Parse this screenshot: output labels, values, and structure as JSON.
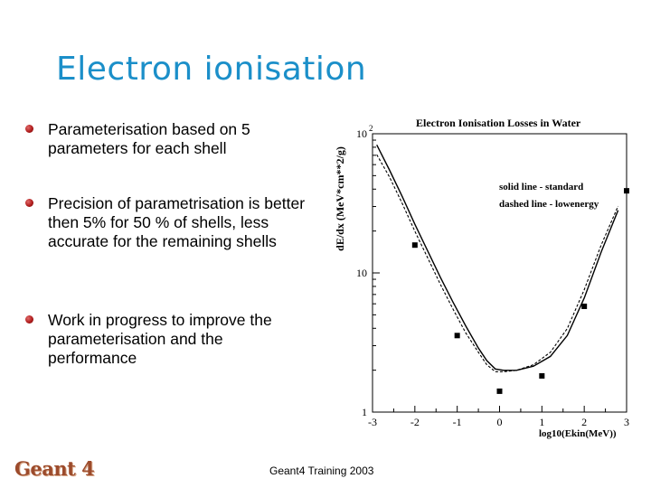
{
  "slide": {
    "title": "Electron ionisation",
    "bullets": [
      "Parameterisation based on 5 parameters for each shell",
      "Precision of parametrisation is better then 5% for 50 % of shells, less accurate for the remaining shells",
      "Work in progress to improve the parameterisation and the performance"
    ],
    "footer": "Geant4 Training 2003",
    "logo_text": "Geant 4"
  },
  "chart_data": {
    "type": "line",
    "title": "Electron Ionisation Losses in Water",
    "xlabel": "log10(Ekin(MeV))",
    "ylabel": "dE/dx (MeV*cm**2/g)",
    "xlim": [
      -3,
      3
    ],
    "ylim_log10": [
      0,
      2
    ],
    "xticks": [
      "-3",
      "-2",
      "-1",
      "0",
      "1",
      "2",
      "3"
    ],
    "yticks": [
      {
        "base": "10",
        "exp": "2"
      },
      {
        "base": "10",
        "exp": ""
      },
      {
        "base": "1",
        "exp": ""
      }
    ],
    "legend": [
      "solid line - standard",
      "dashed line - lowenergy"
    ],
    "series": [
      {
        "name": "standard",
        "style": "solid",
        "x": [
          -2.9,
          -2.6,
          -2.3,
          -2.0,
          -1.7,
          -1.4,
          -1.1,
          -0.8,
          -0.5,
          -0.3,
          -0.1,
          0.1,
          0.4,
          0.8,
          1.2,
          1.6,
          2.0,
          2.4,
          2.8
        ],
        "log10y": [
          1.92,
          1.74,
          1.55,
          1.35,
          1.16,
          0.97,
          0.79,
          0.62,
          0.46,
          0.37,
          0.31,
          0.3,
          0.3,
          0.33,
          0.4,
          0.55,
          0.82,
          1.15,
          1.45
        ]
      },
      {
        "name": "lowenergy",
        "style": "dashed",
        "x": [
          -2.9,
          -2.6,
          -2.3,
          -2.0,
          -1.7,
          -1.4,
          -1.1,
          -0.8,
          -0.5,
          -0.3,
          -0.1,
          0.1,
          0.4,
          0.8,
          1.2,
          1.6,
          2.0,
          2.4,
          2.8
        ],
        "log10y": [
          1.85,
          1.69,
          1.5,
          1.3,
          1.11,
          0.92,
          0.74,
          0.57,
          0.43,
          0.34,
          0.29,
          0.29,
          0.3,
          0.34,
          0.43,
          0.6,
          0.88,
          1.2,
          1.48
        ]
      },
      {
        "name": "data",
        "style": "markers",
        "x": [
          -2.0,
          -1.0,
          0.0,
          1.0,
          2.0,
          3.0
        ],
        "log10y": [
          1.2,
          0.55,
          0.15,
          0.26,
          0.76,
          1.59
        ]
      }
    ]
  }
}
